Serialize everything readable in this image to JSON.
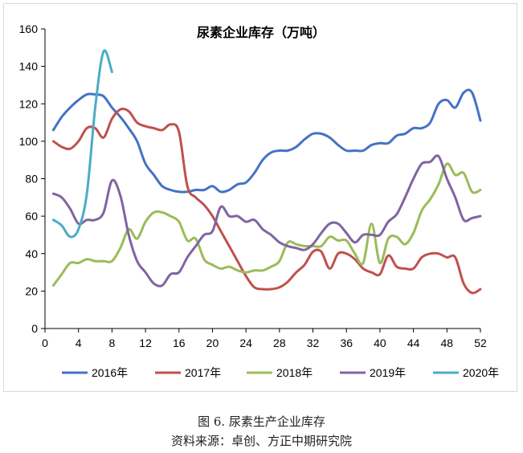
{
  "captions": {
    "figure": "图 6. 尿素生产企业库存",
    "source": "资料来源：卓创、方正中期研究院"
  },
  "chart_data": {
    "type": "line",
    "title": "尿素企业库存（万吨）",
    "xlabel": "",
    "ylabel": "",
    "xlim": [
      0,
      52
    ],
    "ylim": [
      0,
      160
    ],
    "xticks": [
      0,
      4,
      8,
      12,
      16,
      20,
      24,
      28,
      32,
      36,
      40,
      44,
      48,
      52
    ],
    "yticks": [
      0,
      20,
      40,
      60,
      80,
      100,
      120,
      140,
      160
    ],
    "grid": false,
    "legend": "bottom",
    "series": [
      {
        "name": "2016年",
        "color": "#4472c4",
        "x": [
          1,
          2,
          3,
          4,
          5,
          6,
          7,
          8,
          9,
          10,
          11,
          12,
          13,
          14,
          15,
          16,
          17,
          18,
          19,
          20,
          21,
          22,
          23,
          24,
          25,
          26,
          27,
          28,
          29,
          30,
          31,
          32,
          33,
          34,
          35,
          36,
          37,
          38,
          39,
          40,
          41,
          42,
          43,
          44,
          45,
          46,
          47,
          48,
          49,
          50,
          51,
          52
        ],
        "y": [
          106,
          113,
          118,
          122,
          125,
          125,
          124,
          118,
          113,
          107,
          100,
          88,
          82,
          76,
          74,
          73,
          73,
          74,
          74,
          76,
          73,
          74,
          77,
          78,
          83,
          90,
          94,
          95,
          95,
          97,
          101,
          104,
          104,
          102,
          98,
          95,
          95,
          95,
          98,
          99,
          99,
          103,
          104,
          107,
          107,
          110,
          120,
          122,
          118,
          126,
          126,
          111
        ]
      },
      {
        "name": "2017年",
        "color": "#c0504d",
        "x": [
          1,
          2,
          3,
          4,
          5,
          6,
          7,
          8,
          9,
          10,
          11,
          12,
          13,
          14,
          15,
          16,
          17,
          18,
          19,
          20,
          21,
          22,
          23,
          24,
          25,
          26,
          27,
          28,
          29,
          30,
          31,
          32,
          33,
          34,
          35,
          36,
          37,
          38,
          39,
          40,
          41,
          42,
          43,
          44,
          45,
          46,
          47,
          48,
          49,
          50,
          51,
          52
        ],
        "y": [
          100,
          97,
          96,
          100,
          107,
          107,
          102,
          112,
          117,
          116,
          110,
          108,
          107,
          106,
          109,
          105,
          76,
          70,
          66,
          60,
          52,
          44,
          36,
          28,
          22,
          21,
          21,
          22,
          25,
          30,
          34,
          41,
          41,
          32,
          40,
          40,
          37,
          32,
          30,
          29,
          39,
          33,
          32,
          32,
          38,
          40,
          40,
          38,
          38,
          24,
          19,
          21
        ]
      },
      {
        "name": "2018年",
        "color": "#9bbb59",
        "x": [
          1,
          2,
          3,
          4,
          5,
          6,
          7,
          8,
          9,
          10,
          11,
          12,
          13,
          14,
          15,
          16,
          17,
          18,
          19,
          20,
          21,
          22,
          23,
          24,
          25,
          26,
          27,
          28,
          29,
          30,
          31,
          32,
          33,
          34,
          35,
          36,
          37,
          38,
          39,
          40,
          41,
          42,
          43,
          44,
          45,
          46,
          47,
          48,
          49,
          50,
          51,
          52
        ],
        "y": [
          23,
          29,
          35,
          35,
          37,
          36,
          36,
          36,
          43,
          53,
          48,
          57,
          62,
          62,
          60,
          57,
          47,
          48,
          37,
          34,
          32,
          33,
          31,
          30,
          31,
          31,
          33,
          36,
          46,
          45,
          44,
          44,
          44,
          49,
          47,
          47,
          40,
          35,
          56,
          35,
          48,
          49,
          45,
          51,
          63,
          69,
          77,
          88,
          82,
          83,
          73,
          74
        ]
      },
      {
        "name": "2019年",
        "color": "#8064a2",
        "x": [
          1,
          2,
          3,
          4,
          5,
          6,
          7,
          8,
          9,
          10,
          11,
          12,
          13,
          14,
          15,
          16,
          17,
          18,
          19,
          20,
          21,
          22,
          23,
          24,
          25,
          26,
          27,
          28,
          29,
          30,
          31,
          32,
          33,
          34,
          35,
          36,
          37,
          38,
          39,
          40,
          41,
          42,
          43,
          44,
          45,
          46,
          47,
          48,
          49,
          50,
          51,
          52
        ],
        "y": [
          72,
          70,
          64,
          56,
          58,
          58,
          62,
          79,
          71,
          50,
          36,
          30,
          24,
          23,
          29,
          30,
          38,
          44,
          50,
          52,
          65,
          60,
          60,
          57,
          58,
          53,
          50,
          46,
          44,
          43,
          42,
          45,
          51,
          56,
          56,
          51,
          46,
          50,
          50,
          50,
          57,
          61,
          70,
          80,
          88,
          89,
          92,
          80,
          70,
          58,
          59,
          60
        ]
      },
      {
        "name": "2020年",
        "color": "#4bacc6",
        "x": [
          1,
          2,
          3,
          4,
          5,
          6,
          7,
          8
        ],
        "y": [
          58,
          55,
          49,
          53,
          72,
          118,
          148,
          137
        ]
      }
    ]
  }
}
